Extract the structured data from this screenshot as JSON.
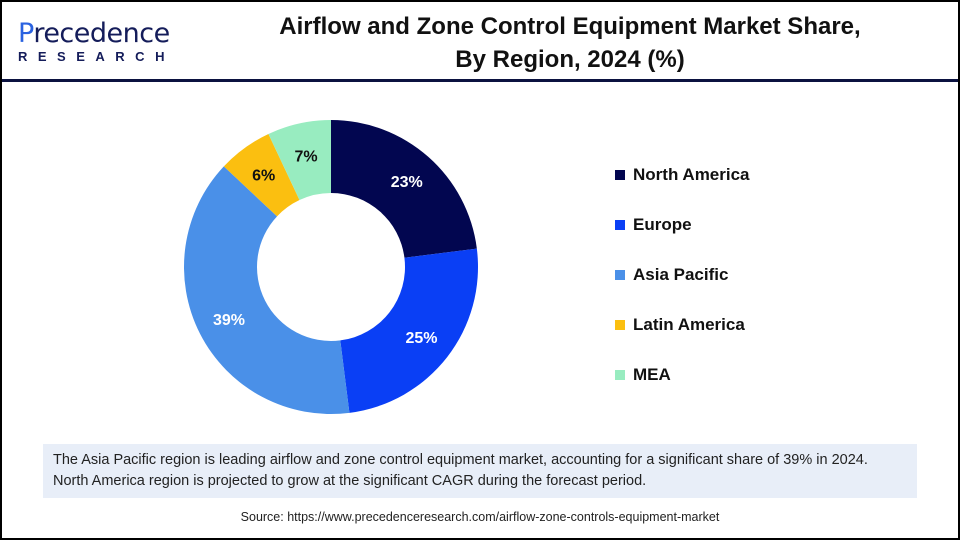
{
  "logo": {
    "text_main": "Precedence",
    "text_sub": "RESEARCH"
  },
  "title_line1": "Airflow and Zone Control Equipment Market Share,",
  "title_line2": "By Region, 2024 (%)",
  "chart_data": {
    "type": "pie",
    "donut": true,
    "title": "Airflow and Zone Control Equipment Market Share, By Region, 2024 (%)",
    "categories": [
      "North America",
      "Europe",
      "Asia Pacific",
      "Latin America",
      "MEA"
    ],
    "values": [
      23,
      25,
      39,
      6,
      7
    ],
    "labels": [
      "23%",
      "25%",
      "39%",
      "6%",
      "7%"
    ],
    "colors": [
      "#020650",
      "#0a3ff5",
      "#4a90e8",
      "#fbbf10",
      "#98ecc0"
    ],
    "label_colors": [
      "#ffffff",
      "#ffffff",
      "#ffffff",
      "#111111",
      "#111111"
    ],
    "legend_position": "right"
  },
  "note": "The Asia Pacific region is leading airflow and zone control equipment market, accounting for a significant share of 39% in 2024. North America region is projected to grow at the significant CAGR during the forecast period.",
  "source": "Source: https://www.precedenceresearch.com/airflow-zone-controls-equipment-market"
}
